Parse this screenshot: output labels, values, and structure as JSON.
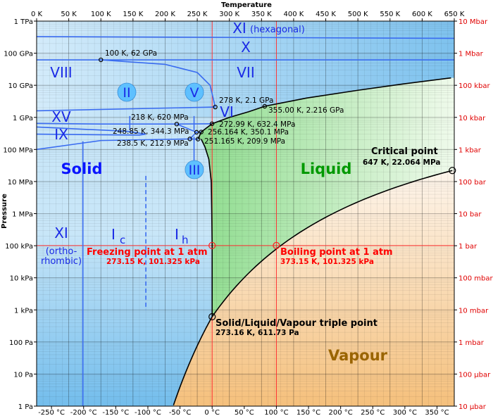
{
  "chart_data": {
    "type": "phase-diagram",
    "title": "",
    "x_axis_top": {
      "label": "Temperature",
      "unit": "K",
      "range": [
        0,
        650
      ],
      "ticks": [
        "0 K",
        "50 K",
        "100 K",
        "150 K",
        "200 K",
        "250 K",
        "300 K",
        "350 K",
        "400 K",
        "450 K",
        "500 K",
        "550 K",
        "600 K",
        "650 K"
      ]
    },
    "x_axis_bottom": {
      "unit": "°C",
      "ticks": [
        "-250 °C",
        "-200 °C",
        "-150 °C",
        "-100 °C",
        "-50 °C",
        "0 °C",
        "50 °C",
        "100 °C",
        "150 °C",
        "200 °C",
        "250 °C",
        "300 °C",
        "350 °C"
      ]
    },
    "y_axis_left": {
      "label": "Pressure",
      "scale": "log",
      "range": [
        "1 Pa",
        "1 TPa"
      ],
      "ticks": [
        "1 Pa",
        "10 Pa",
        "100 Pa",
        "1 kPa",
        "10 kPa",
        "100 kPa",
        "1 MPa",
        "10 MPa",
        "100 MPa",
        "1 GPa",
        "10 GPa",
        "100 GPa",
        "1 TPa"
      ]
    },
    "y_axis_right": {
      "scale": "log",
      "ticks": [
        "10 µbar",
        "100 µbar",
        "1 mbar",
        "10 mbar",
        "100 mbar",
        "1 bar",
        "10 bar",
        "100 bar",
        "1 kbar",
        "10 kbar",
        "100 kbar",
        "1 Mbar",
        "10 Mbar"
      ]
    },
    "regions": [
      {
        "name": "Solid",
        "color": "#0a14ff"
      },
      {
        "name": "Liquid",
        "color": "#009900"
      },
      {
        "name": "Vapour",
        "color": "#9a6400"
      }
    ],
    "ice_phases": [
      "XI (hexagonal)",
      "X",
      "VII",
      "VIII",
      "II",
      "V",
      "VI",
      "XV",
      "IX",
      "III",
      "XI",
      "(ortho-",
      "rhombic)",
      "I",
      "c",
      "I",
      "h"
    ],
    "points": [
      {
        "T_K": 647,
        "P_Pa": 22064000,
        "label": "Critical point",
        "sublabel": "647 K, 22.064 MPa"
      },
      {
        "T_K": 273.15,
        "P_Pa": 101325,
        "label": "Freezing point at 1 atm",
        "sublabel": "273.15 K, 101.325 kPa"
      },
      {
        "T_K": 373.15,
        "P_Pa": 101325,
        "label": "Boiling point at 1 atm",
        "sublabel": "373.15 K, 101.325 kPa"
      },
      {
        "T_K": 273.16,
        "P_Pa": 611.73,
        "label": "Solid/Liquid/Vapour triple point",
        "sublabel": "273.16 K, 611.73 Pa"
      },
      {
        "T_K": 100,
        "P_Pa": 62000000000.0,
        "sublabel": "100 K, 62 GPa"
      },
      {
        "T_K": 278,
        "P_Pa": 2100000000.0,
        "sublabel": "278 K, 2.1 GPa"
      },
      {
        "T_K": 355,
        "P_Pa": 2216000000.0,
        "sublabel": "355.00 K, 2.216 GPa"
      },
      {
        "T_K": 218,
        "P_Pa": 620000000.0,
        "sublabel": "218 K, 620 MPa"
      },
      {
        "T_K": 272.99,
        "P_Pa": 632400000.0,
        "sublabel": "272.99 K, 632.4 MPa"
      },
      {
        "T_K": 248.85,
        "P_Pa": 344300000.0,
        "sublabel": "248.85 K, 344.3 MPa"
      },
      {
        "T_K": 256.164,
        "P_Pa": 350100000.0,
        "sublabel": "256.164 K, 350.1 MPa"
      },
      {
        "T_K": 238.5,
        "P_Pa": 212900000.0,
        "sublabel": "238.5 K, 212.9 MPa"
      },
      {
        "T_K": 251.165,
        "P_Pa": 209900000.0,
        "sublabel": "251.165 K, 209.9 MPa"
      }
    ],
    "colors": {
      "solid_light": "#b6dcf6",
      "solid_dark": "#6ab8ec",
      "liquid_light": "#e5f6e0",
      "liquid_dark": "#8fdd8f",
      "vapour_light": "#fbf0e3",
      "vapour_dark": "#f6c483",
      "boundary": "#000000",
      "ice_line": "#3a6cf0",
      "ref_line": "#ff3a3a"
    }
  }
}
